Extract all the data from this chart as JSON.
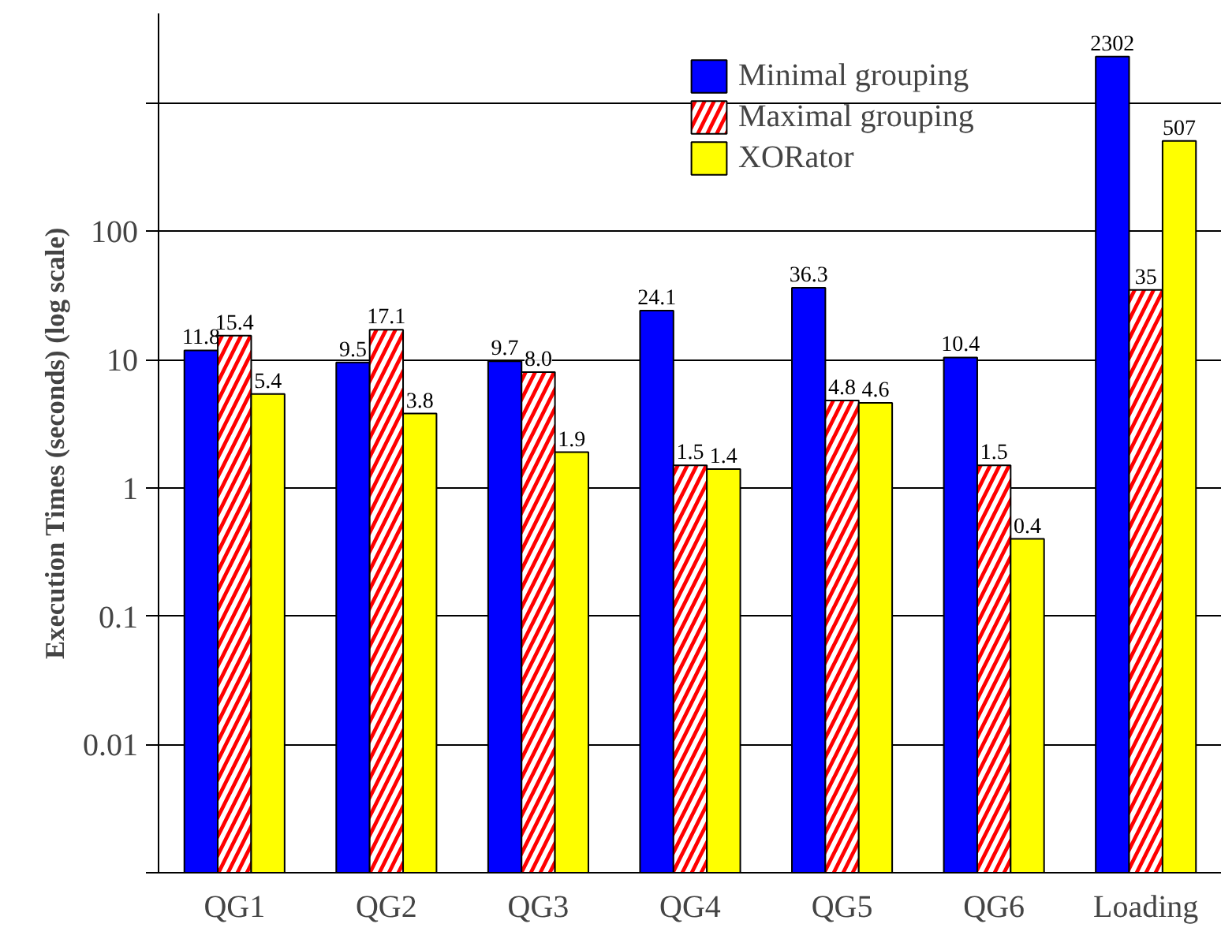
{
  "chart_data": {
    "type": "bar",
    "ylabel": "Execution Times (seconds) (log scale)",
    "categories": [
      "QG1",
      "QG2",
      "QG3",
      "QG4",
      "QG5",
      "QG6",
      "Loading"
    ],
    "series": [
      {
        "name": "Minimal grouping",
        "color": "#0000ff",
        "values": [
          11.8,
          9.5,
          9.7,
          24.1,
          36.3,
          10.4,
          2302
        ],
        "value_labels": [
          "11.8",
          "9.5",
          "9.7",
          "24.1",
          "36.3",
          "10.4",
          "2302"
        ]
      },
      {
        "name": "Maximal grouping",
        "color": "#ff0000",
        "values": [
          15.4,
          17.1,
          8.0,
          1.5,
          4.8,
          1.5,
          35
        ],
        "value_labels": [
          "15.4",
          "17.1",
          "8.0",
          "1.5",
          "4.8",
          "1.5",
          "35"
        ]
      },
      {
        "name": "XORator",
        "color": "#ffff00",
        "values": [
          5.4,
          3.8,
          1.9,
          1.4,
          4.6,
          0.4,
          507
        ],
        "value_labels": [
          "5.4",
          "3.8",
          "1.9",
          "1.4",
          "4.6",
          "0.4",
          "507"
        ]
      }
    ],
    "log": true,
    "ylim": [
      0.001,
      5000
    ],
    "yticks": [
      {
        "value": 0.001,
        "label": null
      },
      0.01,
      0.1,
      1,
      10,
      100,
      {
        "value": 1000,
        "label": null
      }
    ],
    "grid": "y",
    "legend": "top right"
  }
}
